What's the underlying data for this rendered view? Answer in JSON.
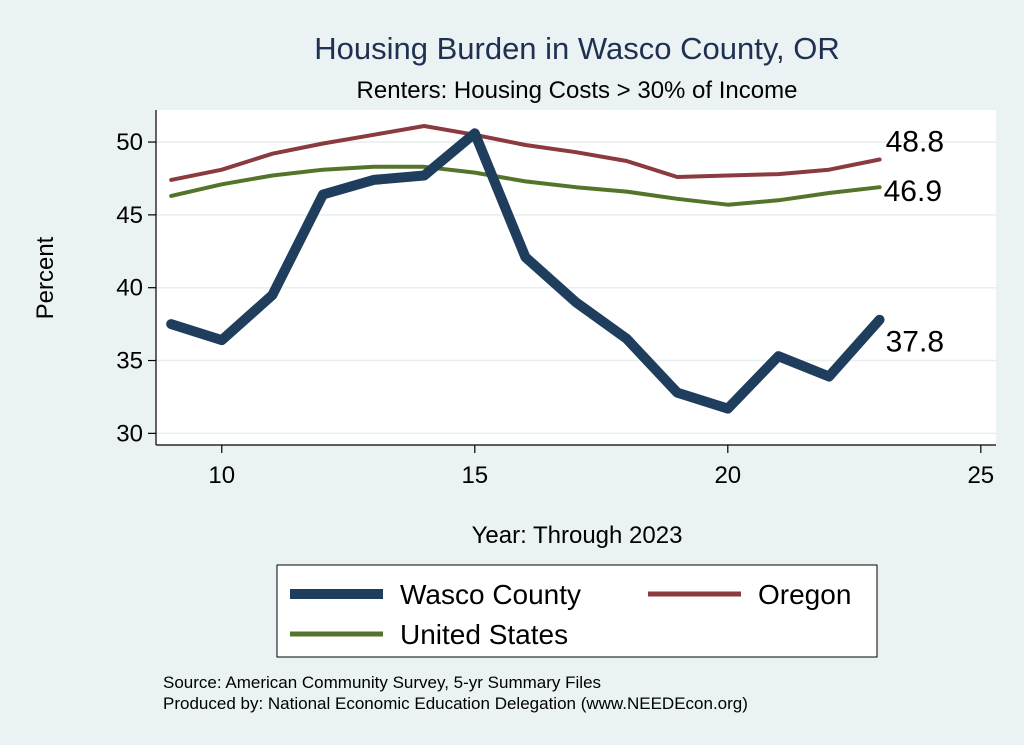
{
  "chart_data": {
    "type": "line",
    "title": "Housing Burden in Wasco County, OR",
    "subtitle": "Renters: Housing Costs > 30% of Income",
    "xlabel": "Year: Through 2023",
    "ylabel": "Percent",
    "xlim": [
      8.7,
      25.3
    ],
    "ylim": [
      29.2,
      52.2
    ],
    "x_ticks": [
      10,
      15,
      20,
      25
    ],
    "y_ticks": [
      30,
      35,
      40,
      45,
      50
    ],
    "grid": true,
    "legend_placement": "bottom",
    "x": [
      9,
      10,
      11,
      12,
      13,
      14,
      15,
      16,
      17,
      18,
      19,
      20,
      21,
      22,
      23
    ],
    "series": [
      {
        "name": "Wasco County",
        "color": "#1f3d5c",
        "values": [
          37.5,
          36.4,
          39.5,
          46.4,
          47.4,
          47.7,
          50.6,
          42.1,
          39.0,
          36.5,
          32.8,
          31.7,
          35.3,
          33.9,
          37.8
        ],
        "end_label": "37.8"
      },
      {
        "name": "Oregon",
        "color": "#8b3a3e",
        "values": [
          47.4,
          48.1,
          49.2,
          49.9,
          50.5,
          51.1,
          50.5,
          49.8,
          49.3,
          48.7,
          47.6,
          47.7,
          47.8,
          48.1,
          48.8
        ],
        "end_label": "48.8"
      },
      {
        "name": "United States",
        "color": "#55742b",
        "values": [
          46.3,
          47.1,
          47.7,
          48.1,
          48.3,
          48.3,
          47.9,
          47.3,
          46.9,
          46.6,
          46.1,
          45.7,
          46.0,
          46.5,
          46.9
        ],
        "end_label": "46.9"
      }
    ],
    "notes": [
      "Source: American Community Survey, 5-yr Summary Files",
      "Produced by: National Economic Education Delegation (www.NEEDEcon.org)"
    ]
  }
}
